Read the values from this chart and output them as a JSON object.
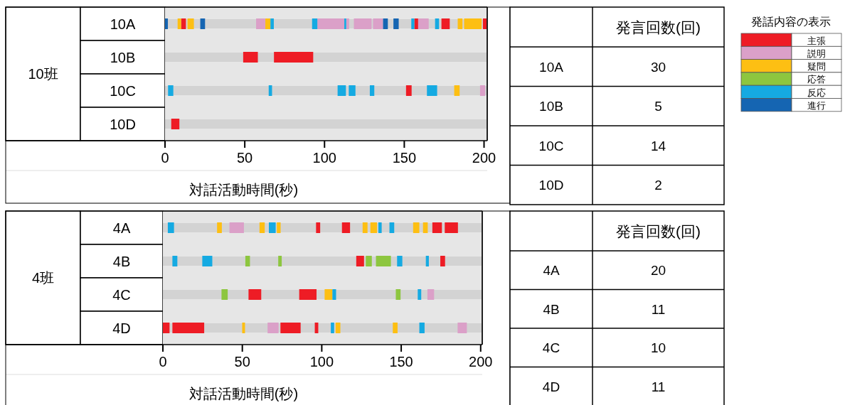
{
  "chart_data": [
    {
      "type": "bar",
      "orientation": "horizontal",
      "ylabel": "10班",
      "xlabel": "対話活動時間(秒)",
      "categories": [
        "10A",
        "10B",
        "10C",
        "10D"
      ],
      "xlim": [
        0,
        202
      ],
      "xticks": [
        0,
        50,
        100,
        150,
        200
      ],
      "series": [
        {
          "color": "#ee1c25",
          "base": [
            10.1,
            49.0,
            151.1,
            3.9
          ],
          "values": [
            3.0,
            9.2,
            3.5,
            5.1
          ]
        },
        {
          "color": "#ee1c25",
          "base": [
            156.3,
            68.3,
            null,
            null
          ],
          "values": [
            2.4,
            24.6,
            null,
            null
          ]
        },
        {
          "color": "#ee1c25",
          "base": [
            173.3,
            null,
            null,
            null
          ],
          "values": [
            5.2,
            null,
            null,
            null
          ]
        },
        {
          "color": "#ee1c25",
          "base": [
            199.3,
            null,
            null,
            null
          ],
          "values": [
            2.5,
            null,
            null,
            null
          ]
        },
        {
          "color": "#dba0c8",
          "base": [
            57.1,
            null,
            197.5,
            null
          ],
          "values": [
            5.8,
            null,
            3.2,
            null
          ]
        },
        {
          "color": "#dba0c8",
          "base": [
            95.5,
            null,
            null,
            null
          ],
          "values": [
            16.9,
            null,
            null,
            null
          ]
        },
        {
          "color": "#dba0c8",
          "base": [
            113.6,
            null,
            null,
            null
          ],
          "values": [
            1.8,
            null,
            null,
            null
          ]
        },
        {
          "color": "#dba0c8",
          "base": [
            118.4,
            null,
            null,
            null
          ],
          "values": [
            11.1,
            null,
            null,
            null
          ]
        },
        {
          "color": "#dba0c8",
          "base": [
            130.4,
            null,
            null,
            null
          ],
          "values": [
            6.3,
            null,
            null,
            null
          ]
        },
        {
          "color": "#dba0c8",
          "base": [
            158.7,
            null,
            null,
            null
          ],
          "values": [
            6.6,
            null,
            null,
            null
          ]
        },
        {
          "color": "#fdbf13",
          "base": [
            7.9,
            null,
            181.3,
            null
          ],
          "values": [
            2.2,
            null,
            3.4,
            null
          ]
        },
        {
          "color": "#fdbf13",
          "base": [
            14.1,
            null,
            null,
            null
          ],
          "values": [
            4.0,
            null,
            null,
            null
          ]
        },
        {
          "color": "#fdbf13",
          "base": [
            62.9,
            null,
            null,
            null
          ],
          "values": [
            3.2,
            null,
            null,
            null
          ]
        },
        {
          "color": "#fdbf13",
          "base": [
            183.5,
            null,
            null,
            null
          ],
          "values": [
            3.0,
            null,
            null,
            null
          ]
        },
        {
          "color": "#fdbf13",
          "base": [
            187.5,
            null,
            null,
            null
          ],
          "values": [
            11.0,
            null,
            null,
            null
          ]
        },
        {
          "color": "#15aae2",
          "base": [
            66.1,
            null,
            1.9,
            null
          ],
          "values": [
            2.1,
            null,
            3.3,
            null
          ]
        },
        {
          "color": "#15aae2",
          "base": [
            92.2,
            null,
            65.0,
            null
          ],
          "values": [
            3.3,
            null,
            2.1,
            null
          ]
        },
        {
          "color": "#15aae2",
          "base": [
            112.4,
            null,
            108.2,
            null
          ],
          "values": [
            1.2,
            null,
            5.2,
            null
          ]
        },
        {
          "color": "#15aae2",
          "base": [
            154.4,
            null,
            115.2,
            null
          ],
          "values": [
            1.9,
            null,
            4.2,
            null
          ]
        },
        {
          "color": "#15aae2",
          "base": [
            169.3,
            null,
            128.4,
            null
          ],
          "values": [
            2.5,
            null,
            2.8,
            null
          ]
        },
        {
          "color": "#15aae2",
          "base": [
            null,
            null,
            164.2,
            null
          ],
          "values": [
            null,
            null,
            6.4,
            null
          ]
        },
        {
          "color": "#1565b2",
          "base": [
            0,
            null,
            null,
            null
          ],
          "values": [
            1.8,
            null,
            null,
            null
          ]
        },
        {
          "color": "#1565b2",
          "base": [
            22.1,
            null,
            null,
            null
          ],
          "values": [
            3.0,
            null,
            null,
            null
          ]
        },
        {
          "color": "#1565b2",
          "base": [
            136.7,
            null,
            null,
            null
          ],
          "values": [
            3.0,
            null,
            null,
            null
          ]
        },
        {
          "color": "#1565b2",
          "base": [
            143.2,
            null,
            null,
            null
          ],
          "values": [
            3.3,
            null,
            null,
            null
          ]
        }
      ]
    },
    {
      "type": "other",
      "title": "発言回数(回)",
      "categories": [
        "10A",
        "10B",
        "10C",
        "10D"
      ],
      "values": [
        30,
        5,
        14,
        2
      ],
      "data_labels": true
    },
    {
      "type": "other",
      "title": "発話内容の表示",
      "categories": [
        "主張",
        "説明",
        "疑問",
        "応答",
        "反応",
        "進行"
      ],
      "colors": [
        "#ee1c25",
        "#dba0c8",
        "#fdbf13",
        "#8dc63f",
        "#15aae2",
        "#1565b2"
      ]
    },
    {
      "type": "bar",
      "orientation": "horizontal",
      "ylabel": "4班",
      "xlabel": "対話活動時間(秒)",
      "categories": [
        "4A",
        "4B",
        "4C",
        "4D"
      ],
      "xlim": [
        0,
        201
      ],
      "xticks": [
        0,
        50,
        100,
        150,
        200
      ],
      "series": [
        {
          "color": "#ee1c25",
          "base": [
            96.4,
            121.7,
            53.9,
            0
          ],
          "values": [
            2.6,
            4.9,
            8.0,
            4.2
          ]
        },
        {
          "color": "#ee1c25",
          "base": [
            112.7,
            174.6,
            85.8,
            6.0
          ],
          "values": [
            5.1,
            3.0,
            10.9,
            20.0
          ]
        },
        {
          "color": "#ee1c25",
          "base": [
            169.6,
            null,
            null,
            74.0
          ],
          "values": [
            6.0,
            null,
            null,
            12.7
          ]
        },
        {
          "color": "#ee1c25",
          "base": [
            177.4,
            null,
            null,
            95.6
          ],
          "values": [
            8.3,
            null,
            null,
            2.2
          ]
        },
        {
          "color": "#dba0c8",
          "base": [
            41.9,
            null,
            166.5,
            65.9
          ],
          "values": [
            9.1,
            null,
            4.2,
            6.9
          ]
        },
        {
          "color": "#dba0c8",
          "base": [
            null,
            null,
            null,
            185.5
          ],
          "values": [
            null,
            null,
            null,
            5.8
          ]
        },
        {
          "color": "#fdbf13",
          "base": [
            34.1,
            null,
            101.8,
            49.9
          ],
          "values": [
            3.0,
            null,
            4.9,
            1.8
          ]
        },
        {
          "color": "#fdbf13",
          "base": [
            60.8,
            null,
            null,
            108.7
          ],
          "values": [
            3.3,
            null,
            null,
            3.0
          ]
        },
        {
          "color": "#fdbf13",
          "base": [
            71.7,
            null,
            null,
            144.7
          ],
          "values": [
            2.4,
            null,
            null,
            3.0
          ]
        },
        {
          "color": "#fdbf13",
          "base": [
            125.7,
            null,
            null,
            null
          ],
          "values": [
            3.1,
            null,
            null,
            null
          ]
        },
        {
          "color": "#fdbf13",
          "base": [
            130.6,
            null,
            null,
            null
          ],
          "values": [
            4.2,
            null,
            null,
            null
          ]
        },
        {
          "color": "#fdbf13",
          "base": [
            157.5,
            null,
            null,
            null
          ],
          "values": [
            3.9,
            null,
            null,
            null
          ]
        },
        {
          "color": "#fdbf13",
          "base": [
            163.7,
            null,
            null,
            null
          ],
          "values": [
            3.0,
            null,
            null,
            null
          ]
        },
        {
          "color": "#8dc63f",
          "base": [
            null,
            51.9,
            36.9,
            null
          ],
          "values": [
            null,
            2.9,
            3.9,
            null
          ]
        },
        {
          "color": "#8dc63f",
          "base": [
            null,
            72.6,
            146.6,
            null
          ],
          "values": [
            null,
            2.2,
            3.0,
            null
          ]
        },
        {
          "color": "#8dc63f",
          "base": [
            null,
            127.7,
            null,
            null
          ],
          "values": [
            null,
            3.8,
            null,
            null
          ]
        },
        {
          "color": "#8dc63f",
          "base": [
            null,
            134.1,
            null,
            null
          ],
          "values": [
            null,
            9.4,
            null,
            null
          ]
        },
        {
          "color": "#15aae2",
          "base": [
            3.1,
            6.0,
            106.7,
            105.7
          ],
          "values": [
            3.9,
            3.1,
            2.3,
            2.1
          ]
        },
        {
          "color": "#15aae2",
          "base": [
            66.7,
            24.8,
            160.4,
            161.4
          ],
          "values": [
            4.3,
            6.3,
            2.2,
            3.3
          ]
        },
        {
          "color": "#15aae2",
          "base": [
            135.6,
            147.4,
            null,
            null
          ],
          "values": [
            2.1,
            3.3,
            null,
            null
          ]
        },
        {
          "color": "#15aae2",
          "base": [
            142.6,
            165.5,
            null,
            null
          ],
          "values": [
            3.0,
            1.9,
            null,
            null
          ]
        }
      ]
    },
    {
      "type": "other",
      "title": "発言回数(回)",
      "categories": [
        "4A",
        "4B",
        "4C",
        "4D"
      ],
      "values": [
        20,
        11,
        10,
        11
      ],
      "data_labels": true
    }
  ]
}
